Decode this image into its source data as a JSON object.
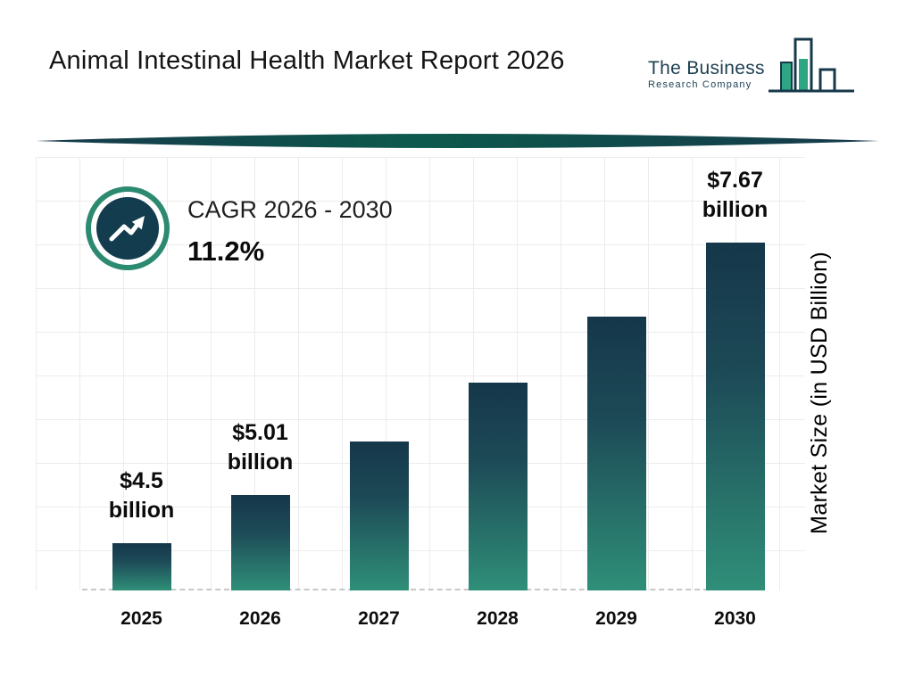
{
  "header": {
    "title": "Animal Intestinal Health Market Report 2026",
    "logo": {
      "name_line1": "The Business",
      "name_line2": "Research Company"
    }
  },
  "cagr": {
    "label": "CAGR 2026 - 2030",
    "value": "11.2%"
  },
  "chart_data": {
    "type": "bar",
    "categories": [
      "2025",
      "2026",
      "2027",
      "2028",
      "2029",
      "2030"
    ],
    "values": [
      4.5,
      5.01,
      5.57,
      6.19,
      6.89,
      7.67
    ],
    "value_labels": [
      {
        "index": 0,
        "line1": "$4.5",
        "line2": "billion"
      },
      {
        "index": 1,
        "line1": "$5.01",
        "line2": "billion"
      },
      {
        "index": 5,
        "line1": "$7.67",
        "line2": "billion"
      }
    ],
    "ylabel": "Market Size (in USD Billion)",
    "ylim": [
      4.0,
      7.8
    ],
    "grid": true,
    "legend": "none",
    "colors": {
      "bar_top": "#15374a",
      "bar_bottom": "#2f8f78",
      "accent_teal": "#2c8a71",
      "navy": "#133c4e"
    }
  }
}
